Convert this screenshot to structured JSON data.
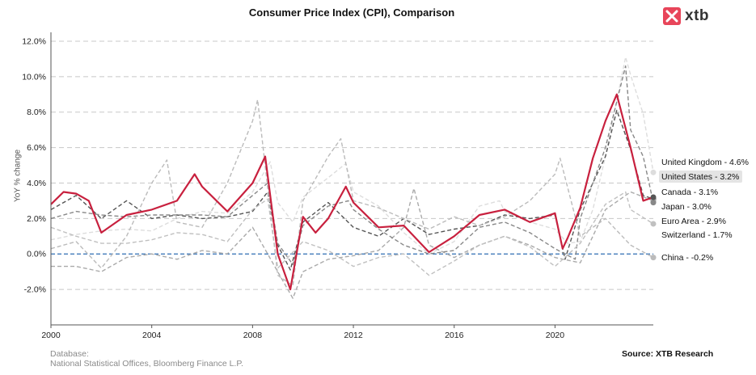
{
  "header": {
    "title": "Consumer Price Index (CPI), Comparison",
    "logo_text": "xtb"
  },
  "footer": {
    "database_label": "Database:",
    "database_value": "National Statistical Offices, Bloomberg Finance L.P.",
    "source": "Source: XTB Research"
  },
  "chart_data": {
    "type": "line",
    "title": "Consumer Price Index (CPI), Comparison",
    "xlabel": "",
    "ylabel": "YoY % change",
    "xlim": [
      2000,
      2023.9
    ],
    "ylim": [
      -4,
      12.5
    ],
    "x_ticks": [
      "2000",
      "2004",
      "2008",
      "2012",
      "2016",
      "2020"
    ],
    "y_ticks": [
      "-2.0%",
      "0.0%",
      "2.0%",
      "4.0%",
      "6.0%",
      "8.0%",
      "10.0%",
      "12.0%"
    ],
    "grid": "horizontal dashed",
    "reference_line": {
      "y": 0,
      "color": "#2e6db4"
    },
    "series": [
      {
        "name": "United Kingdom",
        "end_label": "United Kingdom - 4.6%",
        "last_value": 4.6,
        "color": "#dddddd",
        "style": "dashed",
        "x": [
          2000,
          2001,
          2002,
          2003,
          2004,
          2005,
          2006,
          2007,
          2008,
          2008.7,
          2009,
          2009.6,
          2010,
          2011,
          2011.7,
          2012,
          2013,
          2014,
          2015,
          2016,
          2017,
          2017.8,
          2018,
          2019,
          2020,
          2020.5,
          2021,
          2021.5,
          2022,
          2022.8,
          2023,
          2023.5,
          2023.9
        ],
        "y": [
          0.8,
          1.1,
          1.3,
          1.4,
          1.3,
          2.0,
          2.4,
          2.3,
          3.5,
          5.2,
          2.9,
          1.8,
          3.2,
          4.3,
          5.1,
          3.5,
          2.7,
          1.2,
          0.0,
          0.7,
          2.7,
          3.0,
          2.4,
          1.8,
          1.4,
          0.6,
          0.7,
          2.5,
          5.5,
          11.1,
          10.1,
          7.9,
          4.6
        ]
      },
      {
        "name": "United States",
        "end_label": "United States - 3.2%",
        "last_value": 3.2,
        "color": "#c8203e",
        "style": "solid",
        "x": [
          2000,
          2000.5,
          2001,
          2001.5,
          2002,
          2003,
          2004,
          2005,
          2005.7,
          2006,
          2007,
          2008,
          2008.5,
          2009,
          2009.5,
          2010,
          2010.5,
          2011,
          2011.7,
          2012,
          2013,
          2014,
          2015,
          2016,
          2017,
          2018,
          2019,
          2020,
          2020.3,
          2020.5,
          2021,
          2021.5,
          2022,
          2022.45,
          2023,
          2023.5,
          2023.9
        ],
        "y": [
          2.8,
          3.5,
          3.4,
          3.0,
          1.2,
          2.2,
          2.5,
          3.0,
          4.5,
          3.8,
          2.4,
          4.0,
          5.5,
          0.0,
          -2.0,
          2.1,
          1.2,
          2.0,
          3.8,
          2.9,
          1.5,
          1.6,
          0.1,
          1.0,
          2.2,
          2.5,
          1.8,
          2.3,
          0.3,
          0.9,
          2.6,
          5.4,
          7.5,
          9.0,
          6.0,
          3.0,
          3.2
        ]
      },
      {
        "name": "Canada",
        "end_label": "Canada - 3.1%",
        "last_value": 3.1,
        "color": "#555555",
        "style": "dashed",
        "x": [
          2000,
          2001,
          2002,
          2003,
          2004,
          2005,
          2006,
          2007,
          2008,
          2008.6,
          2009,
          2009.5,
          2010,
          2011,
          2012,
          2013,
          2014,
          2015,
          2016,
          2017,
          2018,
          2019,
          2020,
          2020.4,
          2021,
          2022,
          2022.45,
          2023,
          2023.5,
          2023.9
        ],
        "y": [
          2.5,
          3.3,
          2.0,
          3.0,
          2.0,
          2.2,
          2.0,
          2.1,
          2.4,
          3.5,
          0.5,
          -0.9,
          1.8,
          2.9,
          1.5,
          1.0,
          2.0,
          1.1,
          1.4,
          1.6,
          2.2,
          2.0,
          2.2,
          -0.3,
          2.5,
          5.5,
          8.1,
          5.9,
          3.3,
          3.1
        ]
      },
      {
        "name": "Japan",
        "end_label": "Japan - 3.0%",
        "last_value": 3.0,
        "color": "#aaaaaa",
        "style": "dashed",
        "x": [
          2000,
          2001,
          2002,
          2003,
          2004,
          2005,
          2006,
          2007,
          2008,
          2009,
          2009.6,
          2010,
          2011,
          2012,
          2013,
          2014,
          2014.4,
          2015,
          2016,
          2017,
          2018,
          2019,
          2020,
          2021,
          2022,
          2023,
          2023.9
        ],
        "y": [
          -0.7,
          -0.7,
          -1.0,
          -0.2,
          0.0,
          -0.3,
          0.2,
          0.0,
          1.5,
          -1.0,
          -2.5,
          -1.0,
          -0.3,
          -0.1,
          0.2,
          1.5,
          3.7,
          0.5,
          -0.2,
          0.5,
          1.0,
          0.5,
          -0.2,
          -0.5,
          2.5,
          3.5,
          3.0
        ]
      },
      {
        "name": "Euro Area",
        "end_label": "Euro Area - 2.9%",
        "last_value": 2.9,
        "color": "#888888",
        "style": "dashed",
        "x": [
          2000,
          2001,
          2002,
          2003,
          2004,
          2005,
          2006,
          2007,
          2008,
          2008.6,
          2009,
          2009.6,
          2010,
          2011,
          2011.8,
          2012,
          2013,
          2014,
          2015,
          2016,
          2017,
          2018,
          2019,
          2020,
          2020.8,
          2021,
          2022,
          2022.8,
          2023,
          2023.5,
          2023.9
        ],
        "y": [
          2.0,
          2.4,
          2.2,
          2.1,
          2.2,
          2.2,
          2.2,
          2.1,
          3.3,
          4.0,
          0.6,
          -0.6,
          1.6,
          2.7,
          3.0,
          2.5,
          1.4,
          0.5,
          0.0,
          0.2,
          1.5,
          1.8,
          1.2,
          0.3,
          -0.3,
          2.0,
          6.0,
          10.6,
          7.0,
          5.5,
          2.9
        ]
      },
      {
        "name": "Switzerland",
        "end_label": "Switzerland - 1.7%",
        "last_value": 1.7,
        "color": "#c0c0c0",
        "style": "dashed",
        "x": [
          2000,
          2001,
          2002,
          2003,
          2004,
          2005,
          2006,
          2007,
          2008,
          2008.6,
          2009,
          2010,
          2011,
          2012,
          2013,
          2014,
          2015,
          2016,
          2017,
          2018,
          2019,
          2020,
          2021,
          2022,
          2022.8,
          2023,
          2023.9
        ],
        "y": [
          1.5,
          1.0,
          0.6,
          0.6,
          0.8,
          1.2,
          1.1,
          0.7,
          2.5,
          3.1,
          -0.8,
          0.7,
          0.2,
          -0.7,
          -0.2,
          0.0,
          -1.2,
          -0.4,
          0.5,
          1.0,
          0.4,
          -0.7,
          0.6,
          2.8,
          3.5,
          2.5,
          1.7
        ]
      },
      {
        "name": "China",
        "end_label": "China - -0.2%",
        "last_value": -0.2,
        "color": "#bbbbbb",
        "style": "dashed",
        "x": [
          2000,
          2001,
          2002,
          2003,
          2004,
          2004.6,
          2005,
          2006,
          2007,
          2008,
          2008.2,
          2009,
          2009.6,
          2010,
          2011,
          2011.5,
          2012,
          2013,
          2014,
          2015,
          2016,
          2017,
          2018,
          2019,
          2020,
          2020.2,
          2021,
          2022,
          2023,
          2023.9
        ],
        "y": [
          0.3,
          0.7,
          -0.8,
          1.0,
          4.0,
          5.3,
          1.8,
          1.5,
          4.0,
          7.5,
          8.7,
          -1.2,
          -1.8,
          3.0,
          5.5,
          6.5,
          3.0,
          2.6,
          2.0,
          1.4,
          2.1,
          1.6,
          2.1,
          3.0,
          4.5,
          5.4,
          1.0,
          2.0,
          0.5,
          -0.2
        ]
      }
    ]
  }
}
